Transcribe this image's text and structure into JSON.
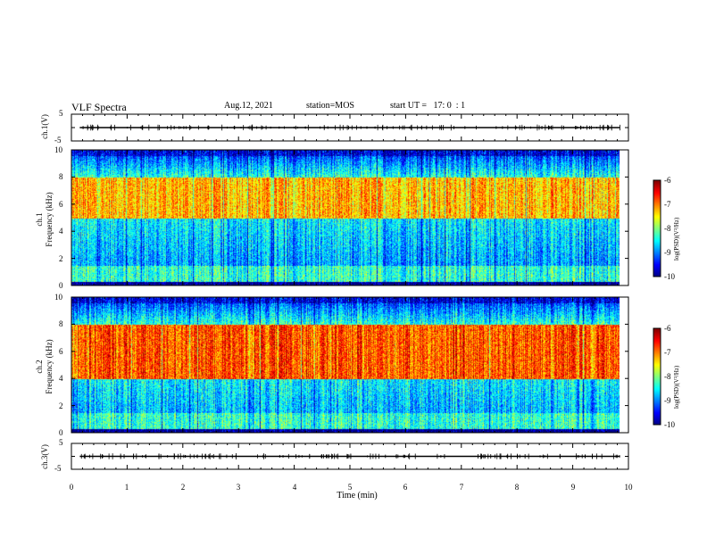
{
  "header": {
    "title": "VLF Spectra",
    "date": "Aug.12, 2021",
    "station": "station=MOS",
    "start": "start UT =   17: 0  : 1"
  },
  "chart_data": [
    {
      "type": "line",
      "panel": "ch1-waveform",
      "ylabel": "ch.1(V)",
      "ylim": [
        -5,
        5
      ],
      "yticks": [
        "5",
        "-5"
      ],
      "xlim": [
        0,
        10
      ],
      "series": [
        {
          "values_description_level": 0
        }
      ],
      "level": 0.0
    },
    {
      "type": "heatmap",
      "panel": "ch1-spectrogram",
      "ylabel": "ch.1\nFrequency (kHz)",
      "ylim": [
        0,
        10
      ],
      "yticks": [
        "0",
        "2",
        "4",
        "6",
        "8",
        "10"
      ],
      "xlim": [
        0,
        10
      ],
      "colorbar": {
        "label": "log(PSD)(V²/Hz)",
        "range": [
          -10,
          -6
        ],
        "ticks": [
          "-6",
          "-7",
          "-8",
          "-9",
          "-10"
        ]
      },
      "dominant_band_khz": [
        5,
        8
      ],
      "dominant_level": -7.2,
      "background_level": -8.3
    },
    {
      "type": "heatmap",
      "panel": "ch2-spectrogram",
      "ylabel": "ch.2\nFrequency (kHz)",
      "ylim": [
        0,
        10
      ],
      "yticks": [
        "0",
        "2",
        "4",
        "6",
        "8",
        "10"
      ],
      "xlim": [
        0,
        10
      ],
      "colorbar": {
        "label": "log(PSD)(V²/Hz)",
        "range": [
          -10,
          -6
        ],
        "ticks": [
          "-6",
          "-7",
          "-8",
          "-9",
          "-10"
        ]
      },
      "dominant_band_khz": [
        4,
        8
      ],
      "dominant_level": -6.8,
      "background_level": -8.3
    },
    {
      "type": "line",
      "panel": "ch3-waveform",
      "ylabel": "ch.3(V)",
      "ylim": [
        -5,
        5
      ],
      "yticks": [
        "5",
        "-5"
      ],
      "xlim": [
        0,
        10
      ],
      "level": 0.0
    }
  ],
  "xaxis": {
    "label": "Time (min)",
    "ticks": [
      "0",
      "1",
      "2",
      "3",
      "4",
      "5",
      "6",
      "7",
      "8",
      "9",
      "10"
    ]
  },
  "colors": {
    "frame": "#000000",
    "trace": "#000000"
  }
}
